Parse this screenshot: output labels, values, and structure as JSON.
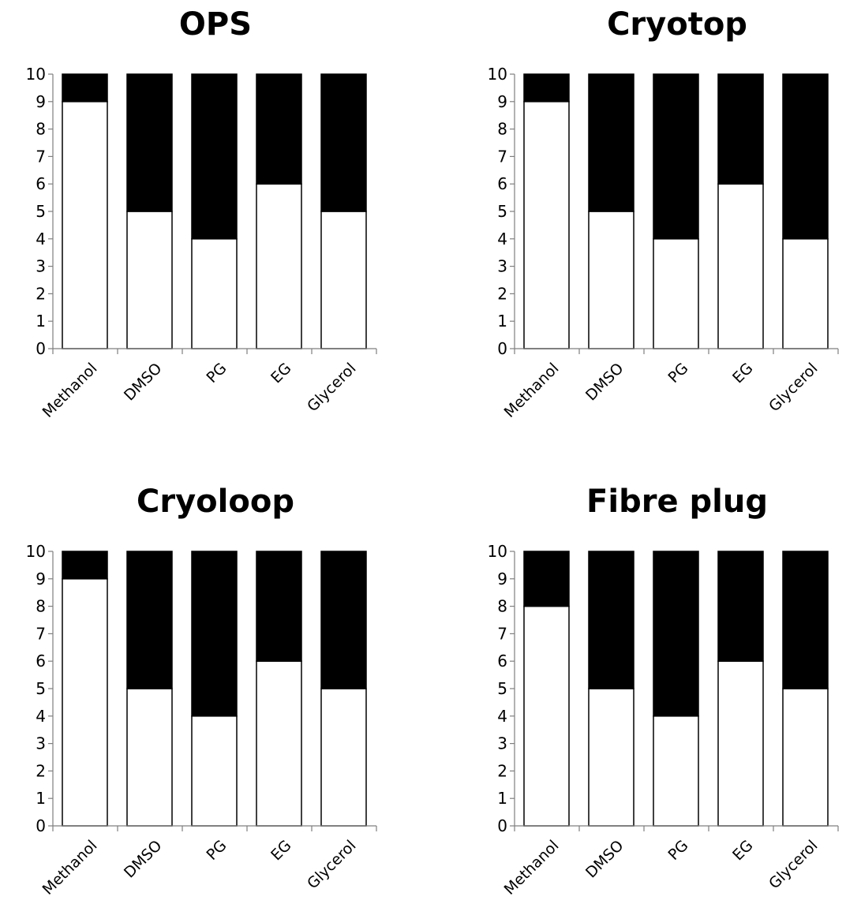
{
  "chart_data": [
    {
      "type": "bar",
      "stacked": true,
      "title": "OPS",
      "categories": [
        "Methanol",
        "DMSO",
        "PG",
        "EG",
        "Glycerol"
      ],
      "series": [
        {
          "values": [
            9,
            5,
            4,
            6,
            5
          ],
          "color": "#ffffff"
        },
        {
          "values": [
            1,
            5,
            6,
            4,
            5
          ],
          "color": "#000000"
        }
      ],
      "ylim": [
        0,
        10
      ],
      "yticks": [
        0,
        1,
        2,
        3,
        4,
        5,
        6,
        7,
        8,
        9,
        10
      ],
      "grid": false
    },
    {
      "type": "bar",
      "stacked": true,
      "title": "Cryotop",
      "categories": [
        "Methanol",
        "DMSO",
        "PG",
        "EG",
        "Glycerol"
      ],
      "series": [
        {
          "values": [
            9,
            5,
            4,
            6,
            4
          ],
          "color": "#ffffff"
        },
        {
          "values": [
            1,
            5,
            6,
            4,
            6
          ],
          "color": "#000000"
        }
      ],
      "ylim": [
        0,
        10
      ],
      "yticks": [
        0,
        1,
        2,
        3,
        4,
        5,
        6,
        7,
        8,
        9,
        10
      ],
      "grid": false
    },
    {
      "type": "bar",
      "stacked": true,
      "title": "Cryoloop",
      "categories": [
        "Methanol",
        "DMSO",
        "PG",
        "EG",
        "Glycerol"
      ],
      "series": [
        {
          "values": [
            9,
            5,
            4,
            6,
            5
          ],
          "color": "#ffffff"
        },
        {
          "values": [
            1,
            5,
            6,
            4,
            5
          ],
          "color": "#000000"
        }
      ],
      "ylim": [
        0,
        10
      ],
      "yticks": [
        0,
        1,
        2,
        3,
        4,
        5,
        6,
        7,
        8,
        9,
        10
      ],
      "grid": false
    },
    {
      "type": "bar",
      "stacked": true,
      "title": "Fibre plug",
      "categories": [
        "Methanol",
        "DMSO",
        "PG",
        "EG",
        "Glycerol"
      ],
      "series": [
        {
          "values": [
            8,
            5,
            4,
            6,
            5
          ],
          "color": "#ffffff"
        },
        {
          "values": [
            2,
            5,
            6,
            4,
            5
          ],
          "color": "#000000"
        }
      ],
      "ylim": [
        0,
        10
      ],
      "yticks": [
        0,
        1,
        2,
        3,
        4,
        5,
        6,
        7,
        8,
        9,
        10
      ],
      "grid": false
    }
  ]
}
